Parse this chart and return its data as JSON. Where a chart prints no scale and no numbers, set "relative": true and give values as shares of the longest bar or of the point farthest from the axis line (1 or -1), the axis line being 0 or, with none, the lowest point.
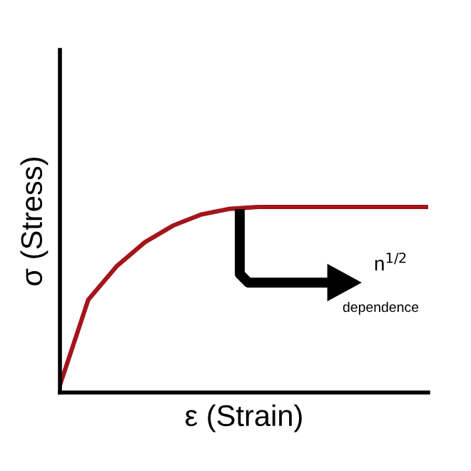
{
  "chart_data": {
    "type": "line",
    "relative": true,
    "xlabel": "ε (Strain)",
    "ylabel": "σ (Stress)",
    "categories": [
      null,
      null,
      null,
      null,
      null,
      null,
      null,
      null,
      null,
      null,
      null,
      null,
      null,
      null
    ],
    "series": [
      {
        "color": "#a3151b",
        "values": [
          0.04,
          0.5,
          0.68,
          0.81,
          0.9,
          0.96,
          0.99,
          1,
          1,
          1,
          1,
          1,
          1,
          1
        ]
      }
    ],
    "annotations": [
      "n$^{1/2}$",
      "dependence"
    ],
    "legend": false,
    "marker": "none",
    "line_style": "solid",
    "tick_labels": false
  }
}
